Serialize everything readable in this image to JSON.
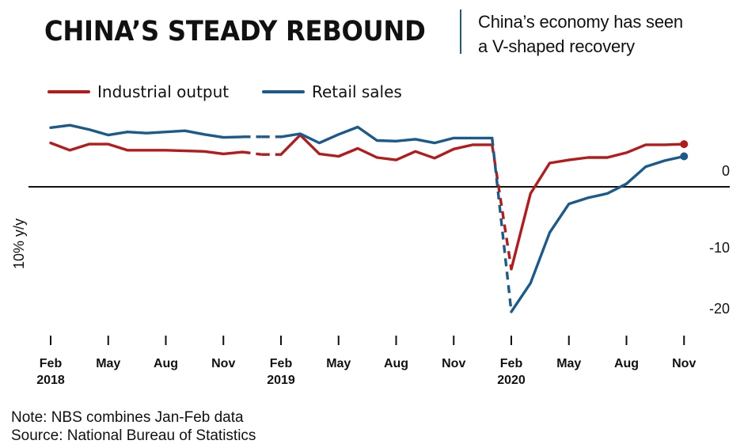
{
  "header": {
    "title": "CHINA’S STEADY REBOUND",
    "subtitle_line1": "China’s economy has seen",
    "subtitle_line2": "a V-shaped recovery"
  },
  "footer": {
    "note": "Note: NBS combines Jan-Feb data",
    "source": "Source: National Bureau of Statistics"
  },
  "chart_data": {
    "type": "line",
    "ylabel": "10% y/y",
    "ylim": [
      -24,
      10
    ],
    "yticks": [
      0,
      -10,
      -20
    ],
    "zero_line": true,
    "grid": false,
    "legend_placement": "top-left",
    "x_labels": [
      {
        "month_index": 1,
        "line1": "Feb",
        "line2": "2018"
      },
      {
        "month_index": 4,
        "line1": "May",
        "line2": ""
      },
      {
        "month_index": 7,
        "line1": "Aug",
        "line2": ""
      },
      {
        "month_index": 10,
        "line1": "Nov",
        "line2": ""
      },
      {
        "month_index": 13,
        "line1": "Feb",
        "line2": "2019"
      },
      {
        "month_index": 16,
        "line1": "May",
        "line2": ""
      },
      {
        "month_index": 19,
        "line1": "Aug",
        "line2": ""
      },
      {
        "month_index": 22,
        "line1": "Nov",
        "line2": ""
      },
      {
        "month_index": 25,
        "line1": "Feb",
        "line2": "2020"
      },
      {
        "month_index": 28,
        "line1": "May",
        "line2": ""
      },
      {
        "month_index": 31,
        "line1": "Aug",
        "line2": ""
      },
      {
        "month_index": 34,
        "line1": "Nov",
        "line2": ""
      }
    ],
    "series": [
      {
        "name": "Industrial output",
        "color": "#b51b1b",
        "end_marker": true,
        "values": [
          [
            1,
            7.2
          ],
          [
            2,
            6.0
          ],
          [
            3,
            7.0
          ],
          [
            4,
            7.0
          ],
          [
            5,
            6.0
          ],
          [
            6,
            6.0
          ],
          [
            7,
            6.0
          ],
          [
            8,
            5.9
          ],
          [
            9,
            5.8
          ],
          [
            10,
            5.4
          ],
          [
            11,
            5.7
          ],
          [
            12,
            5.3
          ],
          [
            13,
            5.3
          ],
          [
            14,
            8.5
          ],
          [
            15,
            5.4
          ],
          [
            16,
            5.0
          ],
          [
            17,
            6.3
          ],
          [
            18,
            4.8
          ],
          [
            19,
            4.4
          ],
          [
            20,
            5.8
          ],
          [
            21,
            4.7
          ],
          [
            22,
            6.2
          ],
          [
            23,
            6.9
          ],
          [
            24,
            6.9
          ],
          [
            25,
            -13.5
          ],
          [
            26,
            -1.1
          ],
          [
            27,
            3.9
          ],
          [
            28,
            4.4
          ],
          [
            29,
            4.8
          ],
          [
            30,
            4.8
          ],
          [
            31,
            5.6
          ],
          [
            32,
            6.9
          ],
          [
            33,
            6.9
          ],
          [
            34,
            7.0
          ]
        ]
      },
      {
        "name": "Retail sales",
        "color": "#1a5a8c",
        "end_marker": true,
        "values": [
          [
            1,
            9.7
          ],
          [
            2,
            10.1
          ],
          [
            3,
            9.4
          ],
          [
            4,
            8.5
          ],
          [
            5,
            9.0
          ],
          [
            6,
            8.8
          ],
          [
            7,
            9.0
          ],
          [
            8,
            9.2
          ],
          [
            9,
            8.6
          ],
          [
            10,
            8.1
          ],
          [
            11,
            8.2
          ],
          [
            12,
            8.2
          ],
          [
            13,
            8.2
          ],
          [
            14,
            8.7
          ],
          [
            15,
            7.2
          ],
          [
            16,
            8.6
          ],
          [
            17,
            9.8
          ],
          [
            18,
            7.6
          ],
          [
            19,
            7.5
          ],
          [
            20,
            7.8
          ],
          [
            21,
            7.2
          ],
          [
            22,
            8.0
          ],
          [
            23,
            8.0
          ],
          [
            24,
            8.0
          ],
          [
            25,
            -20.5
          ],
          [
            26,
            -15.8
          ],
          [
            27,
            -7.5
          ],
          [
            28,
            -2.8
          ],
          [
            29,
            -1.8
          ],
          [
            30,
            -1.1
          ],
          [
            31,
            0.5
          ],
          [
            32,
            3.3
          ],
          [
            33,
            4.3
          ],
          [
            34,
            5.0
          ]
        ],
        "comment_gaps": "dashed segments between months 11-13 and 24-25"
      }
    ]
  }
}
